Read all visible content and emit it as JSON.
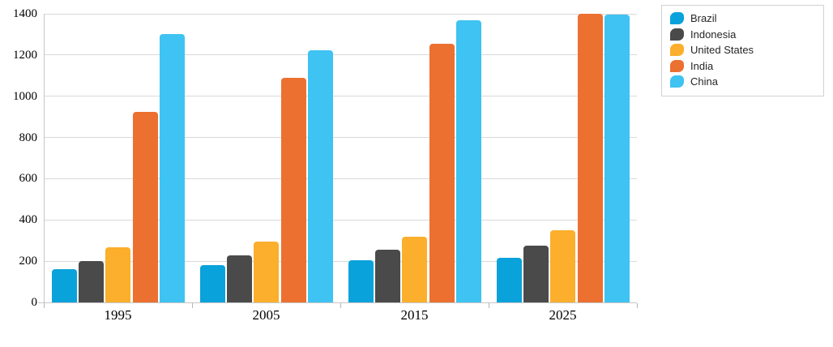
{
  "chart_data": {
    "type": "bar",
    "title": "",
    "xlabel": "",
    "ylabel": "",
    "categories": [
      "1995",
      "2005",
      "2015",
      "2025"
    ],
    "series": [
      {
        "name": "Brazil",
        "color": "#09a2db",
        "values": [
          162,
          182,
          204,
          215
        ]
      },
      {
        "name": "Indonesia",
        "color": "#4a4a4a",
        "values": [
          199,
          228,
          255,
          276
        ]
      },
      {
        "name": "United States",
        "color": "#fbaf2c",
        "values": [
          266,
          296,
          320,
          350
        ]
      },
      {
        "name": "India",
        "color": "#ec7030",
        "values": [
          925,
          1090,
          1256,
          1400
        ]
      },
      {
        "name": "China",
        "color": "#3ec3f2",
        "values": [
          1300,
          1222,
          1368,
          1398
        ]
      }
    ],
    "ylim": [
      0,
      1400
    ],
    "y_ticks": [
      0,
      200,
      400,
      600,
      800,
      1000,
      1200,
      1400
    ],
    "grid": "horizontal",
    "legend_position": "top-right"
  },
  "colors": {
    "gridline": "#d9d9d9",
    "axis": "#c6c6c6",
    "tick": "#b5b5b5",
    "axis_text": "#000000",
    "legend_border": "#d2d2d2",
    "legend_text": "#262626",
    "background": "#ffffff"
  }
}
